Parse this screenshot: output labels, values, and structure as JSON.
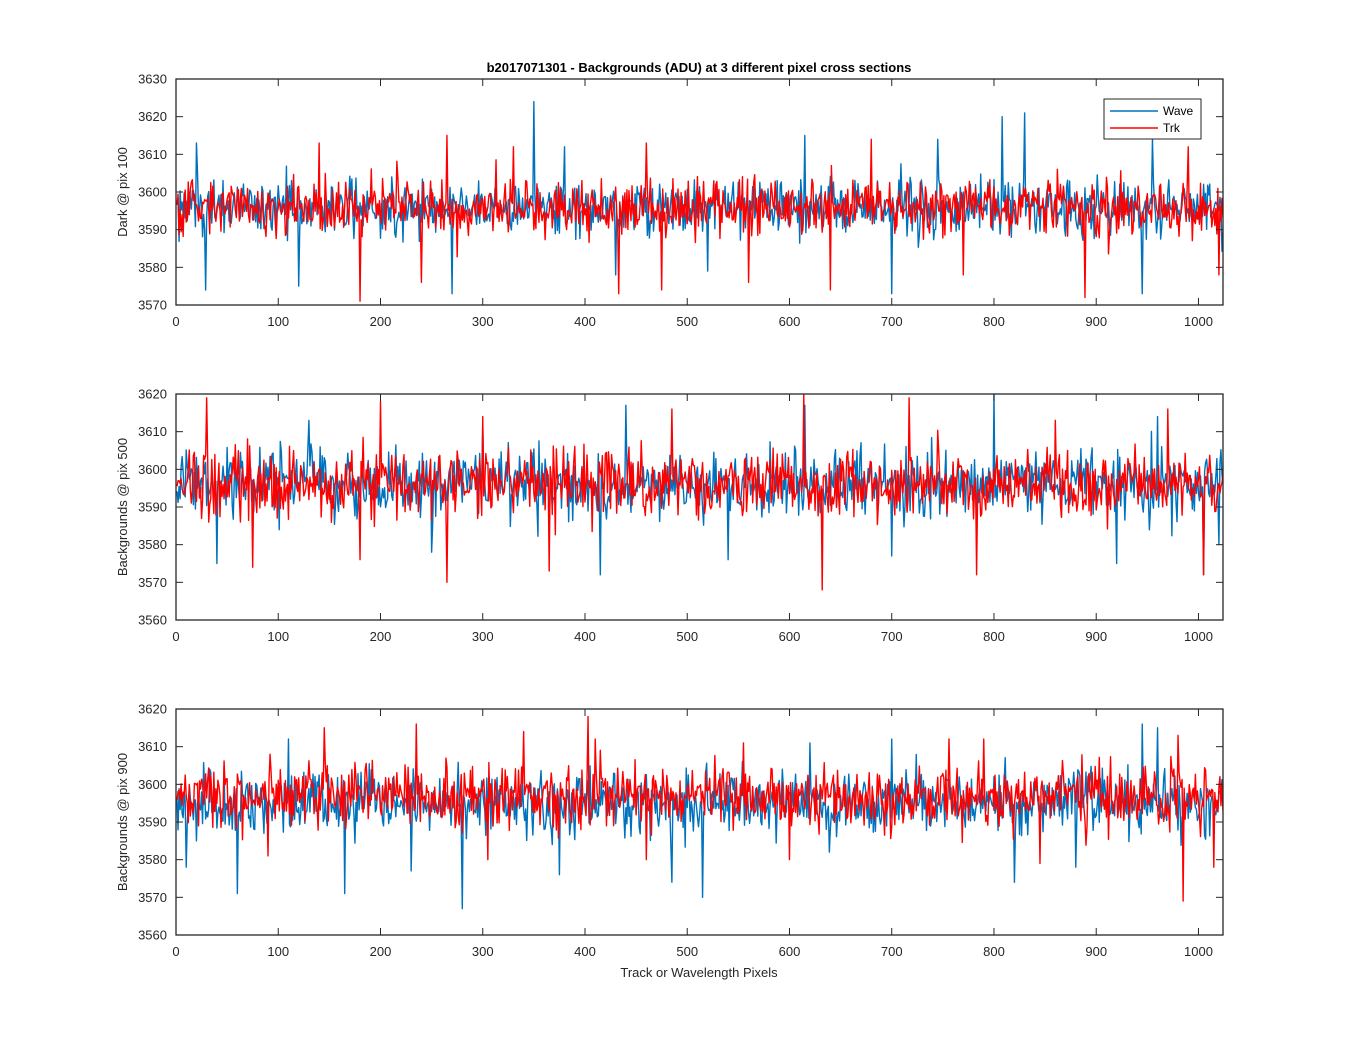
{
  "figure": {
    "title": "b2017071301 - Backgrounds (ADU) at 3 different pixel cross sections",
    "xlabel": "Track or Wavelength Pixels"
  },
  "legend": {
    "entries": [
      "Wave",
      "Trk"
    ],
    "placement": "top-right of first panel"
  },
  "colors": {
    "wave": "#0072BD",
    "trk": "#FF0000",
    "axes": "#262626",
    "background": "#FFFFFF"
  },
  "chart_data": [
    {
      "type": "line",
      "title": "b2017071301 - Backgrounds (ADU) at 3 different pixel cross sections",
      "xlabel": "",
      "ylabel": "Dark @ pix 100",
      "xlim": [
        0,
        1024
      ],
      "ylim": [
        3570,
        3630
      ],
      "xticks": [
        0,
        100,
        200,
        300,
        400,
        500,
        600,
        700,
        800,
        900,
        1000
      ],
      "yticks": [
        3570,
        3580,
        3590,
        3600,
        3610,
        3620,
        3630
      ],
      "grid": false,
      "legend": "top-right",
      "series": [
        {
          "name": "Wave",
          "color": "#0072BD",
          "x_range": [
            1,
            1024
          ],
          "mean": 3596,
          "noise_amplitude": 5,
          "values": [
            [
              350,
              3624
            ],
            [
              830,
              3621
            ],
            [
              808,
              3620
            ],
            [
              270,
              3573
            ],
            [
              29,
              3574
            ],
            [
              945,
              3573
            ],
            [
              700,
              3573
            ],
            [
              20,
              3613
            ],
            [
              955,
              3614
            ],
            [
              380,
              3612
            ],
            [
              120,
              3575
            ],
            [
              615,
              3615
            ],
            [
              745,
              3614
            ],
            [
              430,
              3578
            ],
            [
              520,
              3579
            ]
          ]
        },
        {
          "name": "Trk",
          "color": "#FF0000",
          "x_range": [
            1,
            1024
          ],
          "mean": 3596,
          "noise_amplitude": 5,
          "values": [
            [
              180,
              3571
            ],
            [
              433,
              3573
            ],
            [
              475,
              3574
            ],
            [
              889,
              3572
            ],
            [
              240,
              3576
            ],
            [
              140,
              3613
            ],
            [
              265,
              3615
            ],
            [
              460,
              3613
            ],
            [
              680,
              3614
            ],
            [
              990,
              3612
            ],
            [
              1020,
              3578
            ],
            [
              560,
              3576
            ],
            [
              770,
              3578
            ],
            [
              640,
              3574
            ],
            [
              330,
              3612
            ]
          ]
        }
      ]
    },
    {
      "type": "line",
      "title": "",
      "xlabel": "",
      "ylabel": "Backgrounds @ pix 500",
      "xlim": [
        0,
        1024
      ],
      "ylim": [
        3560,
        3620
      ],
      "xticks": [
        0,
        100,
        200,
        300,
        400,
        500,
        600,
        700,
        800,
        900,
        1000
      ],
      "yticks": [
        3560,
        3570,
        3580,
        3590,
        3600,
        3610,
        3620
      ],
      "grid": false,
      "series": [
        {
          "name": "Wave",
          "color": "#0072BD",
          "x_range": [
            1,
            1024
          ],
          "mean": 3596,
          "noise_amplitude": 6,
          "values": [
            [
              800,
              3620
            ],
            [
              415,
              3572
            ],
            [
              1005,
              3572
            ],
            [
              920,
              3574
            ],
            [
              615,
              3617
            ],
            [
              440,
              3617
            ],
            [
              920,
              3575
            ],
            [
              40,
              3575
            ],
            [
              130,
              3613
            ],
            [
              960,
              3614
            ],
            [
              300,
              3612
            ],
            [
              700,
              3577
            ],
            [
              540,
              3576
            ],
            [
              250,
              3578
            ],
            [
              1020,
              3580
            ]
          ]
        },
        {
          "name": "Trk",
          "color": "#FF0000",
          "x_range": [
            1,
            1024
          ],
          "mean": 3596,
          "noise_amplitude": 6,
          "values": [
            [
              632,
              3568
            ],
            [
              265,
              3570
            ],
            [
              30,
              3619
            ],
            [
              717,
              3619
            ],
            [
              614,
              3620
            ],
            [
              365,
              3573
            ],
            [
              75,
              3574
            ],
            [
              783,
              3572
            ],
            [
              1005,
              3572
            ],
            [
              200,
              3618
            ],
            [
              300,
              3614
            ],
            [
              485,
              3616
            ],
            [
              860,
              3613
            ],
            [
              970,
              3616
            ],
            [
              180,
              3576
            ]
          ]
        }
      ]
    },
    {
      "type": "line",
      "title": "",
      "xlabel": "Track or Wavelength Pixels",
      "ylabel": "Backgrounds @ pix 900",
      "xlim": [
        0,
        1024
      ],
      "ylim": [
        3560,
        3620
      ],
      "xticks": [
        0,
        100,
        200,
        300,
        400,
        500,
        600,
        700,
        800,
        900,
        1000
      ],
      "yticks": [
        3560,
        3570,
        3580,
        3590,
        3600,
        3610,
        3620
      ],
      "grid": false,
      "series": [
        {
          "name": "Wave",
          "color": "#0072BD",
          "x_range": [
            1,
            1024
          ],
          "mean": 3595,
          "noise_amplitude": 6,
          "values": [
            [
              280,
              3567
            ],
            [
              60,
              3571
            ],
            [
              165,
              3571
            ],
            [
              515,
              3570
            ],
            [
              945,
              3616
            ],
            [
              820,
              3574
            ],
            [
              485,
              3574
            ],
            [
              375,
              3576
            ],
            [
              960,
              3615
            ],
            [
              700,
              3612
            ],
            [
              620,
              3611
            ],
            [
              110,
              3612
            ],
            [
              880,
              3578
            ],
            [
              230,
              3577
            ],
            [
              10,
              3578
            ]
          ]
        },
        {
          "name": "Trk",
          "color": "#FF0000",
          "x_range": [
            1,
            1024
          ],
          "mean": 3597,
          "noise_amplitude": 6,
          "values": [
            [
              985,
              3569
            ],
            [
              403,
              3618
            ],
            [
              235,
              3616
            ],
            [
              145,
              3615
            ],
            [
              340,
              3614
            ],
            [
              555,
              3611
            ],
            [
              410,
              3612
            ],
            [
              980,
              3613
            ],
            [
              790,
              3612
            ],
            [
              1015,
              3578
            ],
            [
              600,
              3580
            ],
            [
              845,
              3579
            ],
            [
              90,
              3581
            ],
            [
              460,
              3580
            ],
            [
              305,
              3580
            ]
          ]
        }
      ]
    }
  ]
}
